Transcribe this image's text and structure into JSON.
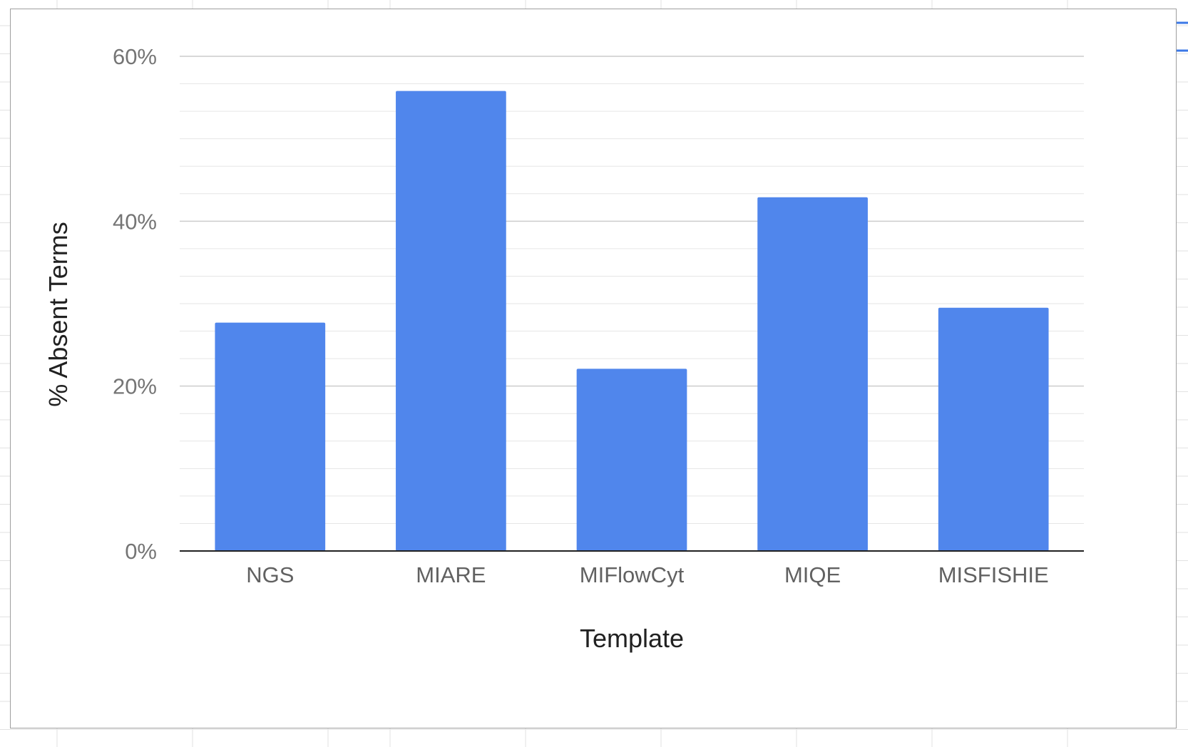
{
  "chart_data": {
    "type": "bar",
    "xlabel": "Template",
    "ylabel": "% Absent Terms",
    "categories": [
      "NGS",
      "MIARE",
      "MIFlowCyt",
      "MIQE",
      "MISFISHIE"
    ],
    "values": [
      27.7,
      55.8,
      22.1,
      42.9,
      29.5
    ],
    "ylim": [
      0,
      60
    ],
    "yticks": [
      0,
      20,
      40,
      60
    ],
    "ytick_labels": [
      "0%",
      "20%",
      "40%",
      "60%"
    ],
    "grid": true,
    "legend": "none",
    "colors": {
      "bar": "#5086ec",
      "grid": "#e0e0e0",
      "axis": "#212121"
    }
  }
}
